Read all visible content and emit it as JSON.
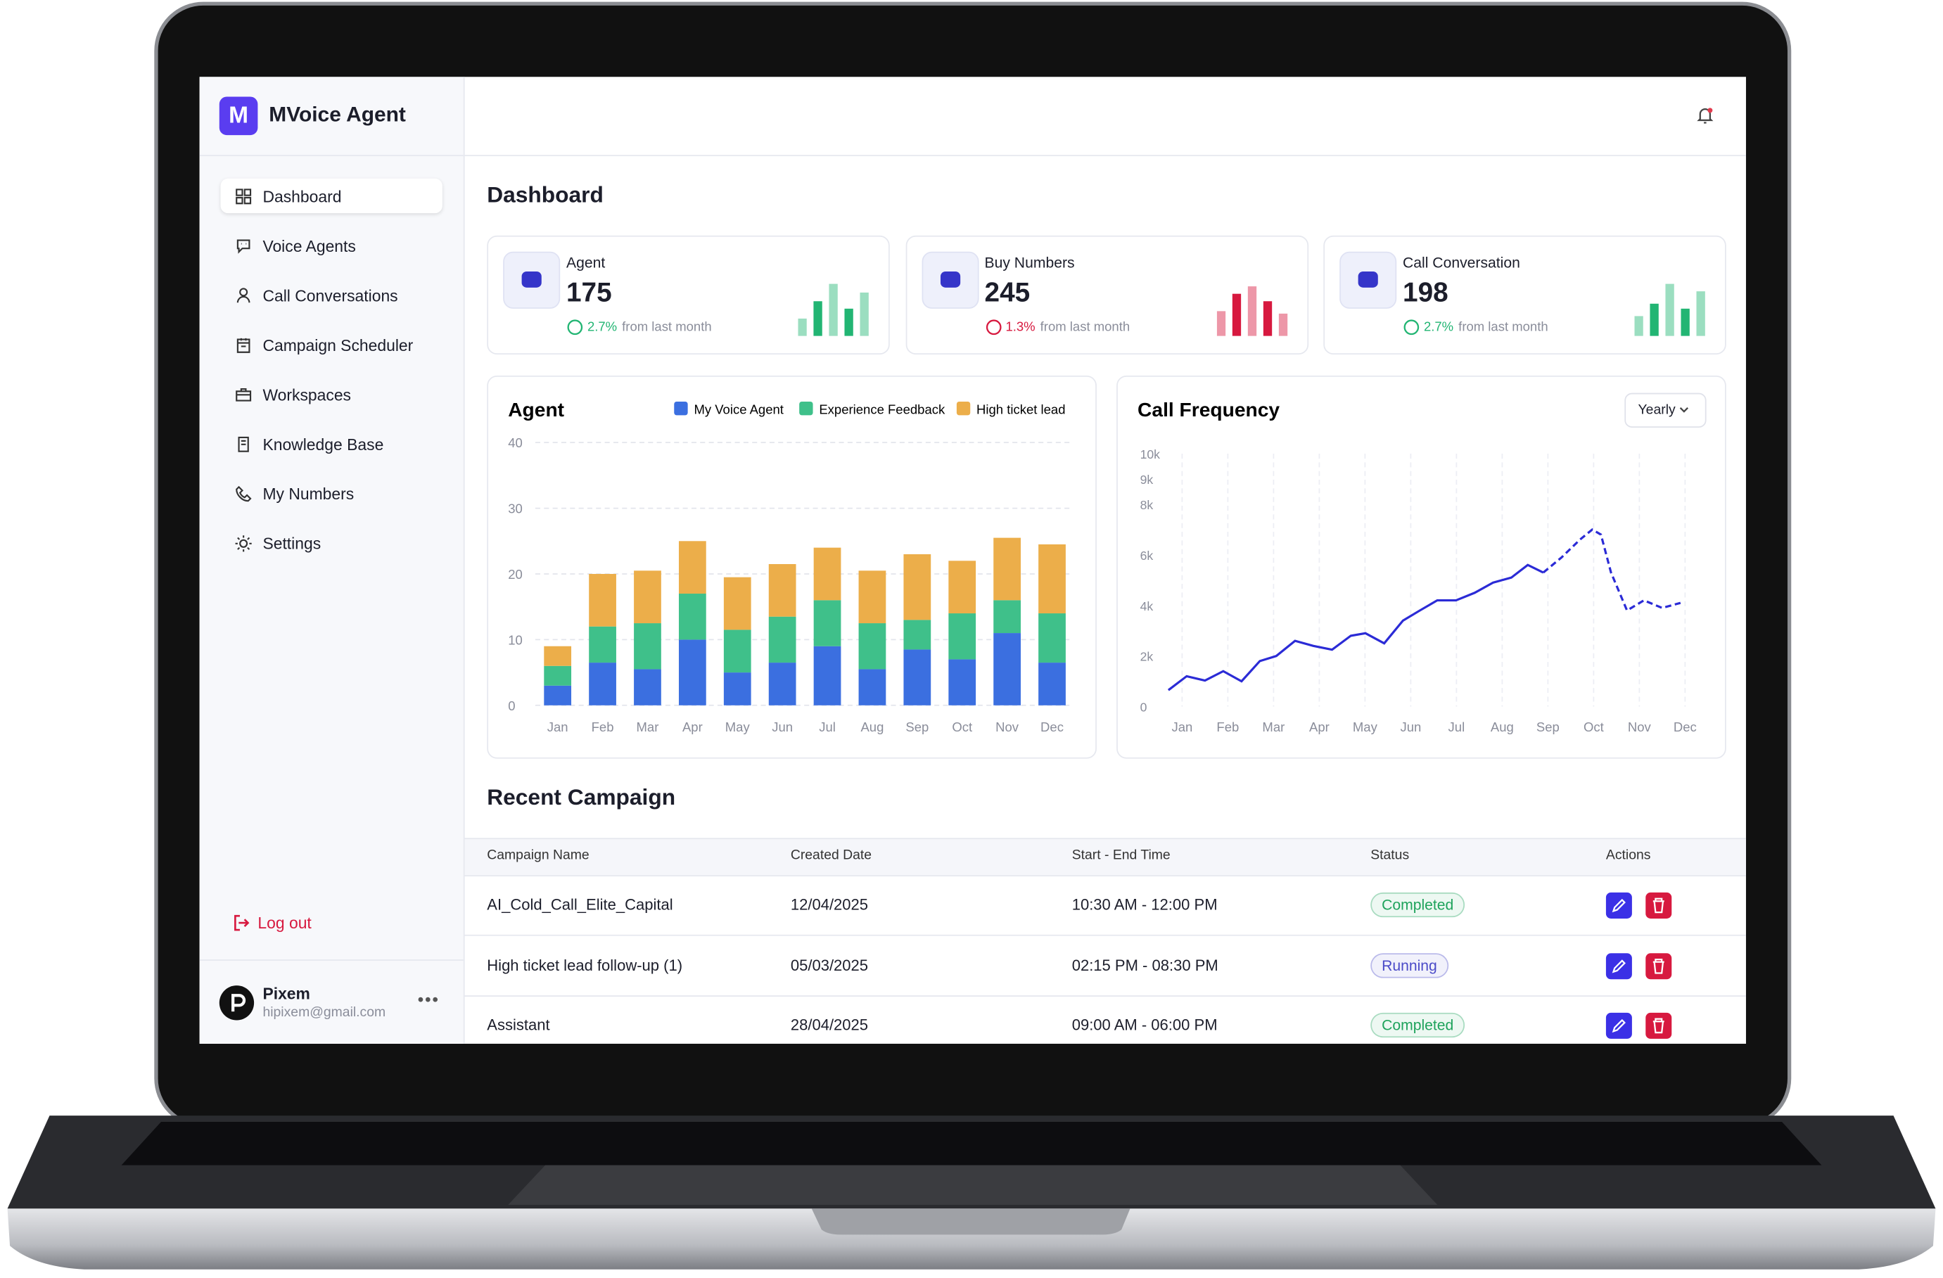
{
  "app": {
    "name": "MVoice Agent",
    "logo_letter": "M"
  },
  "nav": [
    "Dashboard",
    "Voice Agents",
    "Call Conversations",
    "Campaign Scheduler",
    "Workspaces",
    "Knowledge Base",
    "My Numbers",
    "Settings"
  ],
  "logout": "Log out",
  "user": {
    "name": "Pixem",
    "email": "hipixem@gmail.com"
  },
  "page_title": "Dashboard",
  "stats": [
    {
      "label": "Agent",
      "value": 175,
      "change": "2.7%",
      "change_text": "from last month",
      "color": "#22b573"
    },
    {
      "label": "Buy Numbers",
      "value": 245,
      "change": "1.3%",
      "change_text": "from last month",
      "color": "#d7193f"
    },
    {
      "label": "Call Conversation",
      "value": 198,
      "change": "2.7%",
      "change_text": "from last month",
      "color": "#22b573"
    }
  ],
  "agent_chart": {
    "type": "bar",
    "stacked": true,
    "title": "Agent",
    "categories": [
      "Jan",
      "Feb",
      "Mar",
      "Apr",
      "May",
      "Jun",
      "Jul",
      "Aug",
      "Sep",
      "Oct",
      "Nov",
      "Dec"
    ],
    "series": [
      {
        "name": "My Voice Agent",
        "color": "#3b6fe0",
        "values": [
          3,
          6.5,
          5.5,
          10,
          5,
          6.5,
          9,
          5.5,
          8.5,
          7,
          11,
          6.5
        ]
      },
      {
        "name": "Experience Feedback",
        "color": "#3fc08a",
        "values": [
          3,
          5.5,
          7,
          7,
          6.5,
          7,
          7,
          7,
          4.5,
          7,
          5,
          7.5
        ]
      },
      {
        "name": "High ticket lead",
        "color": "#ecae4a",
        "values": [
          3,
          8,
          8,
          8,
          8,
          8,
          8,
          8,
          10,
          8,
          9.5,
          10.5
        ]
      }
    ],
    "ylim": [
      0,
      40
    ],
    "yticks": [
      0,
      10,
      20,
      30,
      40
    ],
    "grid": true
  },
  "call_chart": {
    "type": "line",
    "title": "Call Frequency",
    "filter": "Yearly",
    "xlim": [
      -0.5,
      11.4
    ],
    "xticks": [
      {
        "value": 0,
        "label": "Jan"
      },
      {
        "value": 1,
        "label": "Feb"
      },
      {
        "value": 2,
        "label": "Mar"
      },
      {
        "value": 3,
        "label": "Apr"
      },
      {
        "value": 4,
        "label": "May"
      },
      {
        "value": 5,
        "label": "Jun"
      },
      {
        "value": 6,
        "label": "Jul"
      },
      {
        "value": 7,
        "label": "Aug"
      },
      {
        "value": 8,
        "label": "Sep"
      },
      {
        "value": 9,
        "label": "Oct"
      },
      {
        "value": 10,
        "label": "Nov"
      },
      {
        "value": 11,
        "label": "Dec"
      }
    ],
    "ylim": [
      0,
      10000
    ],
    "yticks": [
      0,
      {
        "value": 2000,
        "label": "2k"
      },
      {
        "value": 4000,
        "label": "4k"
      },
      {
        "value": 6000,
        "label": "6k"
      },
      {
        "value": 8000,
        "label": "8k"
      },
      {
        "value": 9000,
        "label": "9k"
      },
      {
        "value": 10000,
        "label": "10k"
      }
    ],
    "series": [
      {
        "color": "#2b2bd6",
        "style": "solid",
        "x": [
          -0.3,
          0.1,
          0.5,
          0.9,
          1.3,
          1.7,
          2.06,
          2.47,
          2.87,
          3.28,
          3.69,
          4.01,
          4.42,
          4.83,
          5.2,
          5.58,
          5.99,
          6.4,
          6.8,
          7.2,
          7.56,
          7.9
        ],
        "values": [
          650,
          1200,
          1030,
          1400,
          1000,
          1800,
          2000,
          2600,
          2400,
          2250,
          2800,
          2900,
          2500,
          3400,
          3800,
          4200,
          4200,
          4500,
          4900,
          5100,
          5600,
          5300
        ]
      },
      {
        "color": "#2b2bd6",
        "style": "dashed",
        "x": [
          7.9,
          8.3,
          8.7,
          8.97,
          9.16,
          9.38,
          9.73,
          10.1,
          10.5,
          10.9
        ],
        "values": [
          5300,
          5900,
          6600,
          7000,
          6800,
          5300,
          3800,
          4200,
          3900,
          4100
        ]
      }
    ]
  },
  "recent": {
    "title": "Recent Campaign",
    "columns": [
      "Campaign Name",
      "Created Date",
      "Start - End Time",
      "Status",
      "Actions"
    ],
    "rows": [
      {
        "name": "AI_Cold_Call_Elite_Capital",
        "date": "12/04/2025",
        "time": "10:30 AM - 12:00 PM",
        "status": "Completed",
        "status_color": "#1fa35c"
      },
      {
        "name": "High ticket lead follow-up (1)",
        "date": "05/03/2025",
        "time": "02:15 PM - 08:30 PM",
        "status": "Running",
        "status_color": "#4b4bc8"
      },
      {
        "name": "Assistant",
        "date": "28/04/2025",
        "time": "09:00 AM - 06:00 PM",
        "status": "Completed",
        "status_color": "#1fa35c"
      }
    ]
  }
}
